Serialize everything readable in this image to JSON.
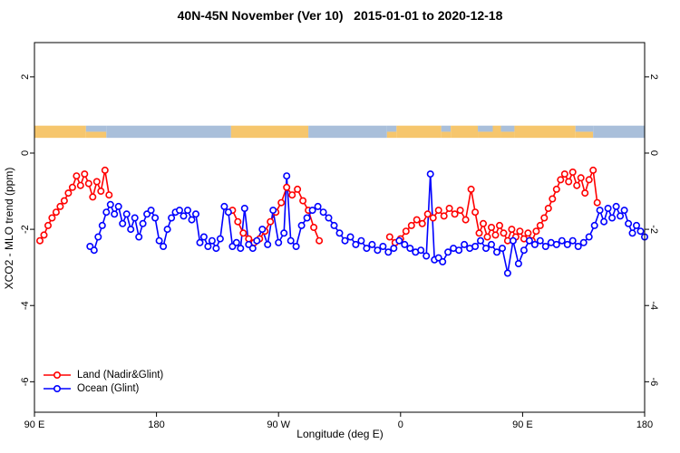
{
  "chart_data": {
    "type": "line",
    "title": "40N-45N November (Ver 10)   2015-01-01 to 2020-12-18",
    "xlabel": "Longitude (deg E)",
    "ylabel": "XCO2 - MLO trend (ppm)",
    "xlim": [
      90,
      540
    ],
    "ylim": [
      -6.8,
      2.9
    ],
    "grid": false,
    "x_ticks": [
      {
        "value": 90,
        "label": "90 E"
      },
      {
        "value": 180,
        "label": "180"
      },
      {
        "value": 270,
        "label": "90 W"
      },
      {
        "value": 360,
        "label": "0"
      },
      {
        "value": 450,
        "label": "90 E"
      },
      {
        "value": 540,
        "label": "180"
      }
    ],
    "y_ticks": [
      {
        "value": 2,
        "label": "2"
      },
      {
        "value": 0,
        "label": "0"
      },
      {
        "value": -2,
        "label": "-2"
      },
      {
        "value": -4,
        "label": "-4"
      },
      {
        "value": -6,
        "label": "-6"
      }
    ],
    "legend": {
      "position": "bottom-left",
      "entries": [
        {
          "label": "Land (Nadir&Glint)",
          "color": "#ff0000"
        },
        {
          "label": "Ocean (Glint)",
          "color": "#0000ff"
        }
      ]
    },
    "land_ocean_strip": {
      "y_top": 0.72,
      "y_bottom": 0.4,
      "land_color": "#f6c66d",
      "ocean_color": "#a9bfda",
      "segments": [
        {
          "from": 90,
          "to": 128,
          "type": "land"
        },
        {
          "from": 128,
          "to": 143,
          "type": "coast"
        },
        {
          "from": 143,
          "to": 235,
          "type": "ocean"
        },
        {
          "from": 235,
          "to": 292,
          "type": "land"
        },
        {
          "from": 292,
          "to": 350,
          "type": "ocean"
        },
        {
          "from": 350,
          "to": 357,
          "type": "coast"
        },
        {
          "from": 357,
          "to": 390,
          "type": "land"
        },
        {
          "from": 390,
          "to": 397,
          "type": "coast"
        },
        {
          "from": 397,
          "to": 417,
          "type": "land"
        },
        {
          "from": 417,
          "to": 428,
          "type": "coast"
        },
        {
          "from": 428,
          "to": 434,
          "type": "land"
        },
        {
          "from": 434,
          "to": 444,
          "type": "coast"
        },
        {
          "from": 444,
          "to": 489,
          "type": "land"
        },
        {
          "from": 489,
          "to": 502,
          "type": "coast"
        },
        {
          "from": 502,
          "to": 540,
          "type": "ocean"
        }
      ]
    },
    "series": [
      {
        "name": "Land (Nadir&Glint)",
        "color": "#ff0000",
        "points": [
          [
            94,
            -2.3
          ],
          [
            97,
            -2.15
          ],
          [
            100,
            -1.9
          ],
          [
            103,
            -1.7
          ],
          [
            106,
            -1.55
          ],
          [
            109,
            -1.4
          ],
          [
            112,
            -1.25
          ],
          [
            115,
            -1.05
          ],
          [
            118,
            -0.9
          ],
          [
            121,
            -0.6
          ],
          [
            124,
            -0.85
          ],
          [
            127,
            -0.55
          ],
          [
            130,
            -0.8
          ],
          [
            133,
            -1.15
          ],
          [
            136,
            -0.75
          ],
          [
            139,
            -1.0
          ],
          [
            142,
            -0.45
          ],
          [
            145,
            -1.1
          ],
          [
            236,
            -1.5
          ],
          [
            240,
            -1.8
          ],
          [
            244,
            -2.1
          ],
          [
            248,
            -2.25
          ],
          [
            252,
            -2.35
          ],
          [
            256,
            -2.25
          ],
          [
            260,
            -2.05
          ],
          [
            264,
            -1.8
          ],
          [
            268,
            -1.55
          ],
          [
            272,
            -1.3
          ],
          [
            276,
            -0.9
          ],
          [
            280,
            -1.1
          ],
          [
            284,
            -0.95
          ],
          [
            288,
            -1.25
          ],
          [
            292,
            -1.5
          ],
          [
            296,
            -1.95
          ],
          [
            300,
            -2.3
          ],
          [
            352,
            -2.2
          ],
          [
            356,
            -2.35
          ],
          [
            360,
            -2.25
          ],
          [
            364,
            -2.05
          ],
          [
            368,
            -1.9
          ],
          [
            372,
            -1.75
          ],
          [
            376,
            -1.85
          ],
          [
            380,
            -1.6
          ],
          [
            384,
            -1.7
          ],
          [
            388,
            -1.5
          ],
          [
            392,
            -1.65
          ],
          [
            396,
            -1.45
          ],
          [
            400,
            -1.6
          ],
          [
            404,
            -1.5
          ],
          [
            408,
            -1.75
          ],
          [
            412,
            -0.95
          ],
          [
            415,
            -1.55
          ],
          [
            418,
            -2.1
          ],
          [
            421,
            -1.85
          ],
          [
            424,
            -2.2
          ],
          [
            427,
            -1.95
          ],
          [
            430,
            -2.15
          ],
          [
            433,
            -1.9
          ],
          [
            436,
            -2.1
          ],
          [
            439,
            -2.3
          ],
          [
            442,
            -2.0
          ],
          [
            445,
            -2.2
          ],
          [
            448,
            -2.05
          ],
          [
            451,
            -2.25
          ],
          [
            454,
            -2.1
          ],
          [
            457,
            -2.3
          ],
          [
            460,
            -2.05
          ],
          [
            463,
            -1.9
          ],
          [
            466,
            -1.7
          ],
          [
            469,
            -1.45
          ],
          [
            472,
            -1.2
          ],
          [
            475,
            -0.95
          ],
          [
            478,
            -0.7
          ],
          [
            481,
            -0.55
          ],
          [
            484,
            -0.75
          ],
          [
            487,
            -0.5
          ],
          [
            490,
            -0.85
          ],
          [
            493,
            -0.65
          ],
          [
            496,
            -1.05
          ],
          [
            499,
            -0.7
          ],
          [
            502,
            -0.45
          ],
          [
            505,
            -1.3
          ]
        ]
      },
      {
        "name": "Ocean (Glint)",
        "color": "#0000ff",
        "points": [
          [
            131,
            -2.45
          ],
          [
            134,
            -2.55
          ],
          [
            137,
            -2.2
          ],
          [
            140,
            -1.9
          ],
          [
            143,
            -1.55
          ],
          [
            146,
            -1.35
          ],
          [
            149,
            -1.6
          ],
          [
            152,
            -1.4
          ],
          [
            155,
            -1.85
          ],
          [
            158,
            -1.6
          ],
          [
            161,
            -2.0
          ],
          [
            164,
            -1.7
          ],
          [
            167,
            -2.2
          ],
          [
            170,
            -1.85
          ],
          [
            173,
            -1.6
          ],
          [
            176,
            -1.5
          ],
          [
            179,
            -1.7
          ],
          [
            182,
            -2.3
          ],
          [
            185,
            -2.45
          ],
          [
            188,
            -2.0
          ],
          [
            191,
            -1.7
          ],
          [
            194,
            -1.55
          ],
          [
            197,
            -1.5
          ],
          [
            200,
            -1.65
          ],
          [
            203,
            -1.5
          ],
          [
            206,
            -1.75
          ],
          [
            209,
            -1.6
          ],
          [
            212,
            -2.35
          ],
          [
            215,
            -2.2
          ],
          [
            218,
            -2.45
          ],
          [
            221,
            -2.3
          ],
          [
            224,
            -2.5
          ],
          [
            227,
            -2.25
          ],
          [
            230,
            -1.4
          ],
          [
            233,
            -1.55
          ],
          [
            236,
            -2.45
          ],
          [
            239,
            -2.35
          ],
          [
            242,
            -2.5
          ],
          [
            245,
            -1.45
          ],
          [
            248,
            -2.4
          ],
          [
            251,
            -2.5
          ],
          [
            254,
            -2.3
          ],
          [
            258,
            -2.0
          ],
          [
            262,
            -2.4
          ],
          [
            266,
            -1.5
          ],
          [
            270,
            -2.35
          ],
          [
            274,
            -2.1
          ],
          [
            276,
            -0.6
          ],
          [
            279,
            -2.3
          ],
          [
            283,
            -2.45
          ],
          [
            287,
            -1.9
          ],
          [
            291,
            -1.7
          ],
          [
            295,
            -1.5
          ],
          [
            299,
            -1.4
          ],
          [
            303,
            -1.55
          ],
          [
            307,
            -1.7
          ],
          [
            311,
            -1.9
          ],
          [
            315,
            -2.1
          ],
          [
            319,
            -2.3
          ],
          [
            323,
            -2.2
          ],
          [
            327,
            -2.4
          ],
          [
            331,
            -2.3
          ],
          [
            335,
            -2.5
          ],
          [
            339,
            -2.4
          ],
          [
            343,
            -2.55
          ],
          [
            347,
            -2.45
          ],
          [
            351,
            -2.6
          ],
          [
            355,
            -2.5
          ],
          [
            359,
            -2.3
          ],
          [
            363,
            -2.4
          ],
          [
            367,
            -2.5
          ],
          [
            371,
            -2.6
          ],
          [
            375,
            -2.55
          ],
          [
            379,
            -2.7
          ],
          [
            382,
            -0.55
          ],
          [
            385,
            -2.8
          ],
          [
            388,
            -2.75
          ],
          [
            391,
            -2.85
          ],
          [
            395,
            -2.6
          ],
          [
            399,
            -2.5
          ],
          [
            403,
            -2.55
          ],
          [
            407,
            -2.4
          ],
          [
            411,
            -2.5
          ],
          [
            415,
            -2.45
          ],
          [
            419,
            -2.3
          ],
          [
            423,
            -2.5
          ],
          [
            427,
            -2.4
          ],
          [
            431,
            -2.6
          ],
          [
            435,
            -2.5
          ],
          [
            439,
            -3.15
          ],
          [
            443,
            -2.3
          ],
          [
            447,
            -2.9
          ],
          [
            451,
            -2.55
          ],
          [
            455,
            -2.3
          ],
          [
            459,
            -2.4
          ],
          [
            463,
            -2.3
          ],
          [
            467,
            -2.45
          ],
          [
            471,
            -2.35
          ],
          [
            475,
            -2.4
          ],
          [
            479,
            -2.3
          ],
          [
            483,
            -2.4
          ],
          [
            487,
            -2.3
          ],
          [
            491,
            -2.45
          ],
          [
            495,
            -2.35
          ],
          [
            499,
            -2.2
          ],
          [
            503,
            -1.9
          ],
          [
            507,
            -1.5
          ],
          [
            510,
            -1.8
          ],
          [
            513,
            -1.45
          ],
          [
            516,
            -1.7
          ],
          [
            519,
            -1.4
          ],
          [
            522,
            -1.65
          ],
          [
            525,
            -1.5
          ],
          [
            528,
            -1.85
          ],
          [
            531,
            -2.1
          ],
          [
            534,
            -1.9
          ],
          [
            537,
            -2.05
          ],
          [
            540,
            -2.2
          ]
        ]
      }
    ]
  }
}
